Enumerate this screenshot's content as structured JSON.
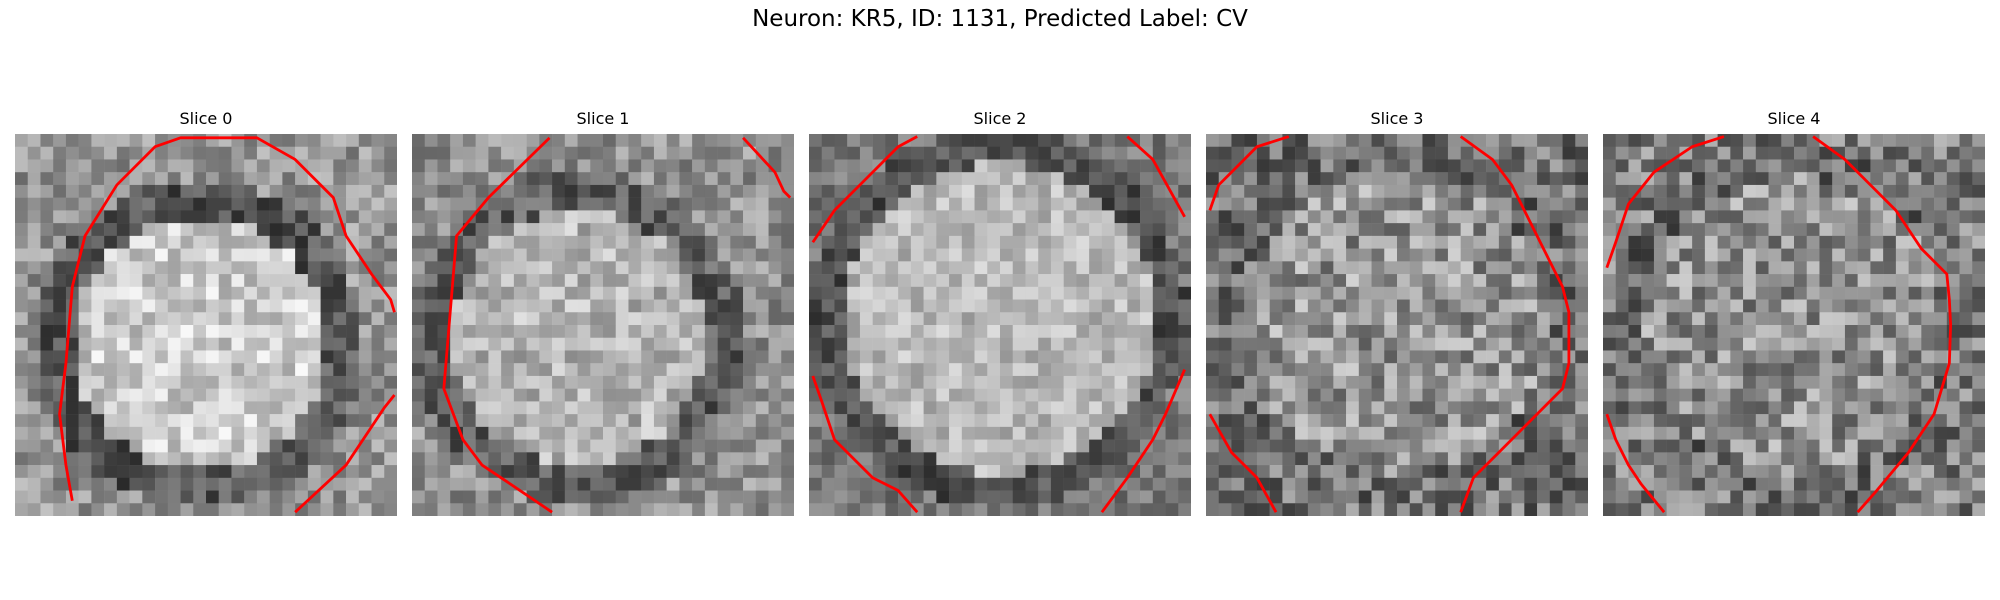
{
  "figure": {
    "title": "Neuron: KR5, ID: 1131, Predicted Label: CV"
  },
  "contour_color": "#ff0000",
  "slices": [
    {
      "title": "Slice 0"
    },
    {
      "title": "Slice 1"
    },
    {
      "title": "Slice 2"
    },
    {
      "title": "Slice 3"
    },
    {
      "title": "Slice 4"
    }
  ]
}
